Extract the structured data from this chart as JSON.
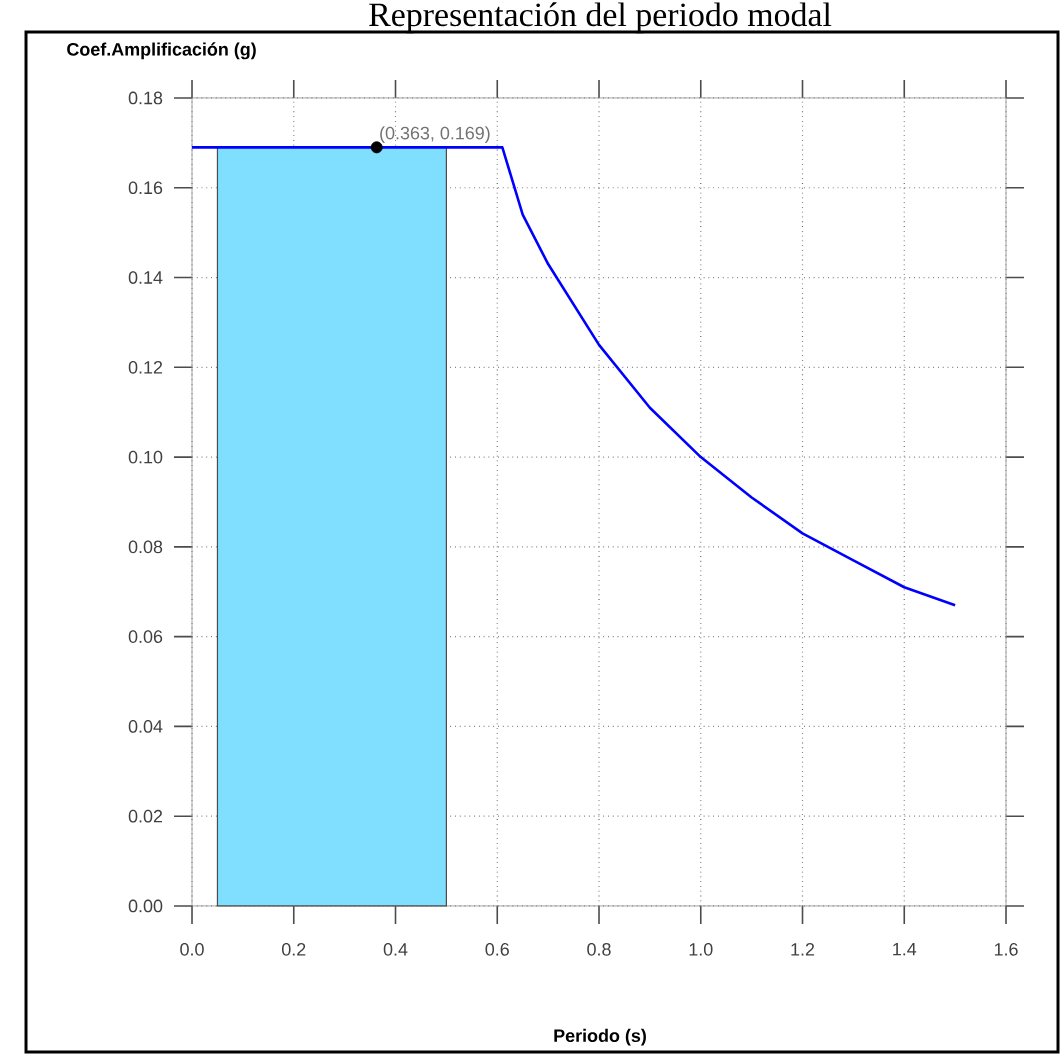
{
  "chart_data": {
    "type": "line",
    "title": "Representación del periodo modal",
    "xlabel": "Periodo (s)",
    "ylabel": "Coef.Amplificación (g)",
    "xlim": [
      0,
      1.6
    ],
    "ylim": [
      0,
      0.18
    ],
    "xticks": [
      {
        "value": 0,
        "label": "0.0"
      },
      {
        "value": 0.2,
        "label": "0.2"
      },
      {
        "value": 0.4,
        "label": "0.4"
      },
      {
        "value": 0.6,
        "label": "0.6"
      },
      {
        "value": 0.8,
        "label": "0.8"
      },
      {
        "value": 1.0,
        "label": "1.0"
      },
      {
        "value": 1.2,
        "label": "1.2"
      },
      {
        "value": 1.4,
        "label": "1.4"
      },
      {
        "value": 1.6,
        "label": "1.6"
      }
    ],
    "yticks": [
      {
        "value": 0,
        "label": "0.00"
      },
      0.02,
      0.04,
      0.06,
      0.08,
      {
        "value": 0.1,
        "label": "0.10"
      },
      0.12,
      0.14,
      0.16,
      0.18
    ],
    "grid": true,
    "series": [
      {
        "type": "area",
        "color": "#80dfff",
        "x": [
          0.05,
          0.5
        ],
        "values": [
          0.169,
          0.169
        ]
      },
      {
        "color": "#0000ff",
        "x": [
          0,
          0.61,
          0.65,
          0.7,
          0.8,
          0.9,
          1.0,
          1.1,
          1.2,
          1.3,
          1.4,
          1.5
        ],
        "values": [
          0.169,
          0.169,
          0.154,
          0.143,
          0.125,
          0.111,
          0.1,
          0.091,
          0.083,
          0.077,
          0.071,
          0.067
        ]
      },
      {
        "type": "scatter",
        "color": "#000000",
        "marker": "circle",
        "x": [
          0.363
        ],
        "values": [
          0.169
        ]
      }
    ],
    "annotations": [
      {
        "text": "(0.363, 0.169)",
        "x": 0.363,
        "y": 0.169
      }
    ]
  }
}
